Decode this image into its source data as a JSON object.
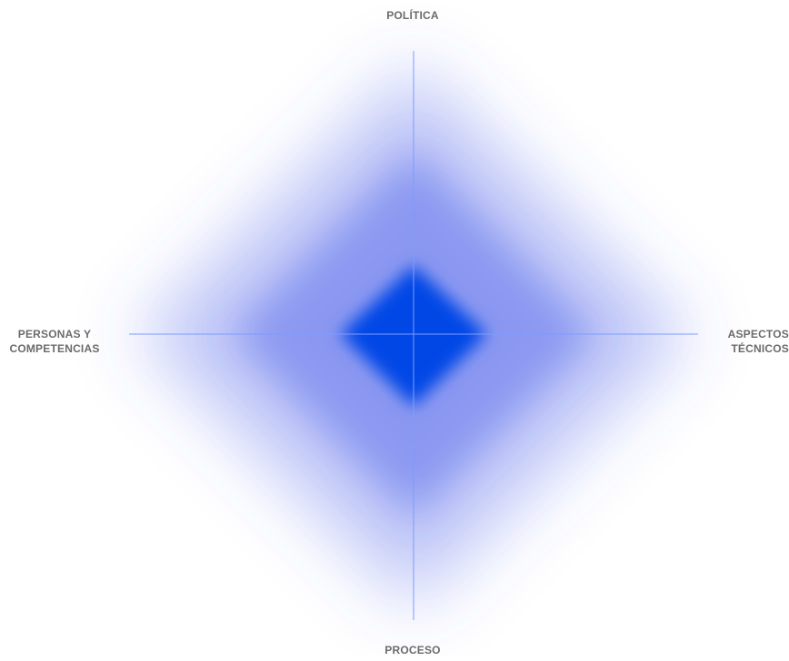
{
  "diagram": {
    "type": "four-axis-maturity-map",
    "axes": {
      "top": "POLÍTICA",
      "bottom": "PROCESO",
      "left": [
        "PERSONAS Y",
        "COMPETENCIAS"
      ],
      "right": [
        "ASPECTOS",
        "TÉCNICOS"
      ]
    },
    "colors": {
      "core": "#0047e6",
      "glow": "#4a5ee8",
      "axis_line": "#7c9cff",
      "label_text": "#6b6b6b",
      "background": "#ffffff"
    }
  }
}
